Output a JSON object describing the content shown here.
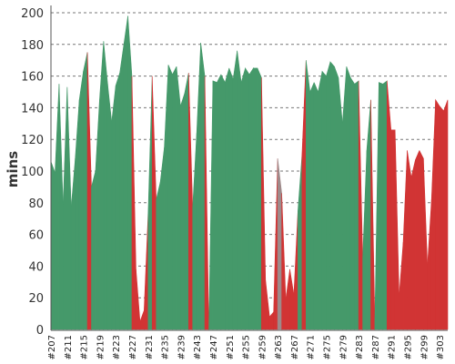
{
  "chart_data": {
    "type": "area",
    "title": "",
    "xlabel": "",
    "ylabel": "mins",
    "ylim": [
      0,
      200
    ],
    "yticks": [
      0,
      20,
      40,
      60,
      80,
      100,
      120,
      140,
      160,
      180,
      200
    ],
    "grid": true,
    "legend": "none",
    "colors": {
      "green": "#45996a",
      "red": "#d13434",
      "gray": "#9e8a8a",
      "grid": "#777777",
      "axis": "#555555"
    },
    "xtick_labels": [
      "#207",
      "#211",
      "#215",
      "#219",
      "#223",
      "#227",
      "#231",
      "#235",
      "#239",
      "#243",
      "#247",
      "#251",
      "#255",
      "#259",
      "#263",
      "#267",
      "#271",
      "#275",
      "#279",
      "#283",
      "#287",
      "#291",
      "#295",
      "#299",
      "#303"
    ],
    "x": [
      "#207",
      "#208",
      "#209",
      "#210",
      "#211",
      "#212",
      "#213",
      "#214",
      "#215",
      "#216",
      "#217",
      "#218",
      "#219",
      "#220",
      "#221",
      "#222",
      "#223",
      "#224",
      "#225",
      "#226",
      "#227",
      "#228",
      "#229",
      "#230",
      "#231",
      "#232",
      "#233",
      "#234",
      "#235",
      "#236",
      "#237",
      "#238",
      "#239",
      "#240",
      "#241",
      "#242",
      "#243",
      "#244",
      "#245",
      "#246",
      "#247",
      "#248",
      "#249",
      "#250",
      "#251",
      "#252",
      "#253",
      "#254",
      "#255",
      "#256",
      "#257",
      "#258",
      "#259",
      "#260",
      "#261",
      "#262",
      "#263",
      "#264",
      "#265",
      "#266",
      "#267",
      "#268",
      "#269",
      "#270",
      "#271",
      "#272",
      "#273",
      "#274",
      "#275",
      "#276",
      "#277",
      "#278",
      "#279",
      "#280",
      "#281",
      "#282",
      "#283",
      "#284",
      "#285",
      "#286",
      "#287",
      "#288",
      "#289",
      "#290",
      "#291",
      "#292",
      "#293",
      "#294",
      "#295",
      "#296",
      "#297",
      "#298",
      "#299",
      "#300",
      "#301",
      "#302",
      "#303",
      "#304",
      "#305"
    ],
    "values": [
      106,
      99,
      155,
      78,
      153,
      77,
      108,
      145,
      163,
      175,
      90,
      100,
      145,
      182,
      155,
      131,
      154,
      162,
      180,
      198,
      160,
      38,
      5,
      12,
      73,
      160,
      82,
      93,
      115,
      167,
      161,
      166,
      141,
      149,
      162,
      77,
      124,
      181,
      160,
      0,
      157,
      156,
      161,
      156,
      165,
      158,
      176,
      156,
      165,
      161,
      165,
      165,
      159,
      31,
      8,
      11,
      108,
      86,
      19,
      38,
      22,
      75,
      110,
      170,
      150,
      156,
      150,
      163,
      160,
      169,
      166,
      159,
      130,
      166,
      159,
      155,
      157,
      45,
      113,
      145,
      5,
      156,
      155,
      157,
      126,
      126,
      21,
      55,
      113,
      96,
      107,
      113,
      108,
      40,
      82,
      145,
      141,
      138,
      145
    ],
    "status": [
      "red",
      "green",
      "green",
      "green",
      "green",
      "green",
      "green",
      "green",
      "green",
      "green",
      "red",
      "green",
      "green",
      "green",
      "green",
      "green",
      "green",
      "green",
      "green",
      "green",
      "green",
      "red",
      "red",
      "red",
      "red",
      "green",
      "red",
      "green",
      "green",
      "green",
      "green",
      "green",
      "green",
      "green",
      "green",
      "red",
      "green",
      "green",
      "green",
      "red",
      "green",
      "green",
      "green",
      "green",
      "green",
      "green",
      "green",
      "green",
      "green",
      "green",
      "green",
      "green",
      "green",
      "red",
      "red",
      "red",
      "red",
      "gray",
      "red",
      "red",
      "red",
      "red",
      "green",
      "red",
      "green",
      "green",
      "green",
      "green",
      "green",
      "green",
      "green",
      "green",
      "green",
      "green",
      "green",
      "green",
      "green",
      "red",
      "green",
      "green",
      "red",
      "green",
      "green",
      "green",
      "red",
      "red",
      "red",
      "red",
      "red",
      "red",
      "red",
      "red",
      "red",
      "red",
      "red",
      "red",
      "red",
      "red",
      "red"
    ]
  }
}
